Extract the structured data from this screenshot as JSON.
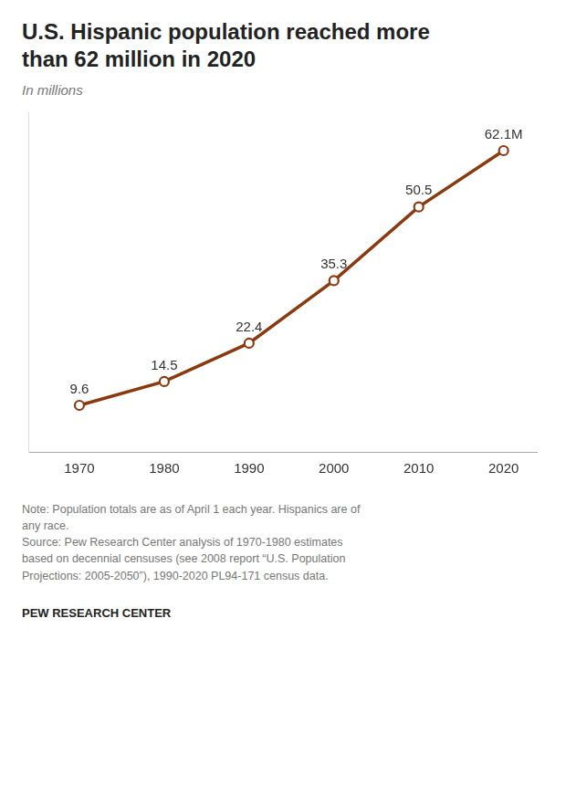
{
  "chart_data": {
    "type": "line",
    "title": "U.S. Hispanic population reached more\nthan 62 million in 2020",
    "subtitle": "In millions",
    "x": [
      1970,
      1980,
      1990,
      2000,
      2010,
      2020
    ],
    "values": [
      9.6,
      14.5,
      22.4,
      35.3,
      50.5,
      62.1
    ],
    "value_labels": [
      "9.6",
      "14.5",
      "22.4",
      "35.3",
      "50.5",
      "62.1M"
    ],
    "data_labels": true,
    "color": "#8B3A0F",
    "marker": "circle",
    "xlim": [
      1964,
      2024
    ],
    "xticks": [
      1970,
      1980,
      1990,
      2000,
      2010,
      2020
    ],
    "ylim": [
      0,
      70
    ],
    "tick_labels": "x",
    "grid": false,
    "note": [
      "Note: Population totals are as of April 1 each year. Hispanics are of",
      "any race.",
      "Source: Pew Research Center analysis of 1970-1980 estimates",
      "based on decennial censuses (see 2008 report “U.S. Population",
      "Projections: 2005-2050”), 1990-2020 PL94-171 census data."
    ],
    "footer": "PEW RESEARCH CENTER"
  }
}
